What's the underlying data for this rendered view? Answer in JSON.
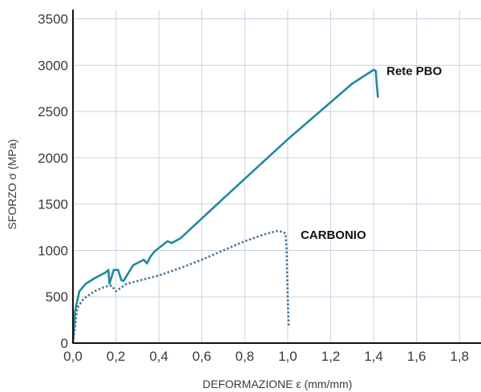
{
  "chart_data": {
    "type": "line",
    "xlabel": "DEFORMAZIONE  ε (mm/mm)",
    "ylabel": "SFORZO σ (MPa)",
    "xlim": [
      0,
      1.9
    ],
    "ylim": [
      0,
      3600
    ],
    "x_ticks": [
      "0,0",
      "0,2",
      "0,4",
      "0,6",
      "0,8",
      "1,0",
      "1,2",
      "1,4",
      "1,6",
      "1,8"
    ],
    "x_tick_values": [
      0,
      0.2,
      0.4,
      0.6,
      0.8,
      1.0,
      1.2,
      1.4,
      1.6,
      1.8
    ],
    "y_ticks": [
      "0",
      "500",
      "1000",
      "1500",
      "2000",
      "2500",
      "3000",
      "3500"
    ],
    "y_tick_values": [
      0,
      500,
      1000,
      1500,
      2000,
      2500,
      3000,
      3500
    ],
    "grid": true,
    "series": [
      {
        "name": "Rete PBO",
        "color": "#1f8a9b",
        "style": "solid",
        "x": [
          0,
          0.01,
          0.03,
          0.06,
          0.1,
          0.15,
          0.165,
          0.17,
          0.19,
          0.21,
          0.225,
          0.235,
          0.28,
          0.33,
          0.345,
          0.36,
          0.38,
          0.44,
          0.46,
          0.5,
          0.7,
          1.0,
          1.3,
          1.4,
          1.41,
          1.415,
          1.42
        ],
        "y": [
          0,
          350,
          560,
          640,
          700,
          760,
          790,
          640,
          790,
          790,
          680,
          670,
          840,
          900,
          860,
          930,
          990,
          1100,
          1080,
          1130,
          1560,
          2200,
          2800,
          2950,
          2940,
          2780,
          2660
        ]
      },
      {
        "name": "CARBONIO",
        "color": "#4f7391",
        "style": "dotted",
        "x": [
          0,
          0.02,
          0.05,
          0.1,
          0.15,
          0.18,
          0.2,
          0.25,
          0.3,
          0.4,
          0.5,
          0.6,
          0.7,
          0.8,
          0.9,
          0.95,
          0.98,
          0.99,
          0.995,
          1.0,
          1.005
        ],
        "y": [
          0,
          380,
          480,
          560,
          610,
          620,
          560,
          640,
          670,
          730,
          810,
          900,
          1000,
          1100,
          1180,
          1210,
          1200,
          1180,
          1000,
          500,
          170
        ]
      }
    ],
    "annotations": [
      {
        "text": "Rete PBO",
        "x": 1.46,
        "y": 2940
      },
      {
        "text": "CARBONIO",
        "x": 1.06,
        "y": 1170
      }
    ]
  }
}
